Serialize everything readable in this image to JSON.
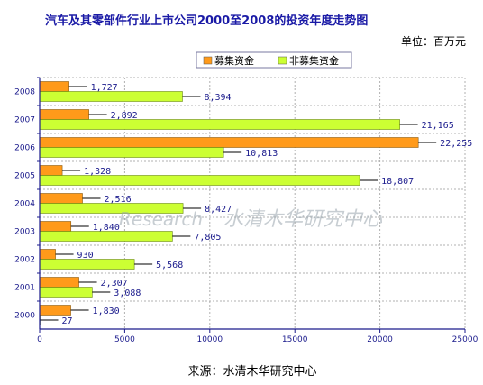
{
  "page": {
    "title": "汽车及其零部件行业上市公司2000至2008的投资年度走势图",
    "unit": "单位：百万元",
    "source": "来源：水清木华研究中心",
    "watermark": "水清木华研究中心",
    "watermark_logo_text": "research"
  },
  "colors": {
    "series1": "#ff9a1a",
    "series2": "#ccff33",
    "axis": "#1a1a8c",
    "grid": "#b0b0b0",
    "title": "#1a1aa6"
  },
  "chart_data": {
    "type": "bar",
    "orientation": "horizontal",
    "title": "汽车及其零部件行业上市公司2000至2008的投资年度走势图",
    "xlabel": "",
    "ylabel": "",
    "xlim": [
      0,
      25000
    ],
    "x_ticks": [
      "0",
      "5000",
      "10000",
      "15000",
      "20000",
      "25000"
    ],
    "categories": [
      "2008",
      "2007",
      "2006",
      "2005",
      "2004",
      "2003",
      "2002",
      "2001",
      "2000"
    ],
    "series": [
      {
        "name": "募集资金",
        "values": [
          1727,
          2892,
          22255,
          1328,
          2516,
          1840,
          930,
          2307,
          1830
        ],
        "labels": [
          "1,727",
          "2,892",
          "22,255",
          "1,328",
          "2,516",
          "1,840",
          "930",
          "2,307",
          "1,830"
        ]
      },
      {
        "name": "非募集资金",
        "values": [
          8394,
          21165,
          10813,
          18807,
          8427,
          7805,
          5568,
          3088,
          27
        ],
        "labels": [
          "8,394",
          "21,165",
          "10,813",
          "18,807",
          "8,427",
          "7,805",
          "5,568",
          "3,088",
          "27"
        ]
      }
    ],
    "grid": true,
    "legend_position": "top-center"
  }
}
